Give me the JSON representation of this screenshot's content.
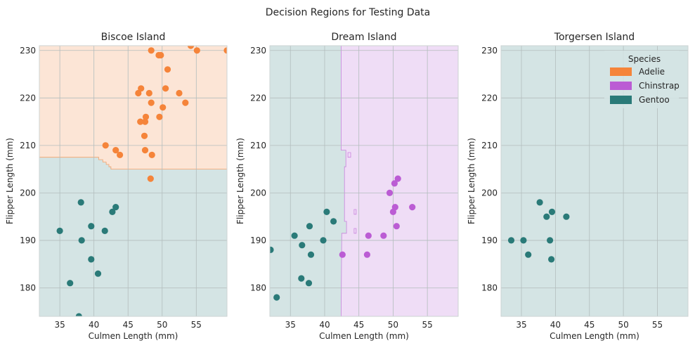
{
  "figure": {
    "title": "Decision Regions for Testing Data"
  },
  "colors": {
    "Adelie": "#f5843a",
    "Chinstrap": "#bb5cd4",
    "Gentoo": "#2a7a78",
    "Adelie_region": "#fce5d6",
    "Chinstrap_region": "#efddf6",
    "Gentoo_region": "#d4e4e4",
    "grid": "#b3bdbd",
    "spine": "#cdd3d3"
  },
  "legend": {
    "title": "Species",
    "placement": "top-right of Torgersen Island panel",
    "entries": [
      "Adelie",
      "Chinstrap",
      "Gentoo"
    ]
  },
  "chart_data": [
    {
      "type": "scatter",
      "title": "Biscoe Island",
      "xlabel": "Culmen Length (mm)",
      "ylabel": "Flipper Length (mm)",
      "xlim": [
        32,
        59.5
      ],
      "ylim": [
        174,
        231
      ],
      "xticks": [
        35,
        40,
        45,
        50,
        55
      ],
      "yticks": [
        180,
        190,
        200,
        210,
        220,
        230
      ],
      "grid": true,
      "background_region": "Gentoo",
      "regions": [
        {
          "class": "Adelie",
          "boundary": [
            [
              32,
              207.5
            ],
            [
              40.7,
              207.5
            ],
            [
              40.7,
              207
            ],
            [
              41.3,
              207
            ],
            [
              41.3,
              206.5
            ],
            [
              41.8,
              206.5
            ],
            [
              41.8,
              206
            ],
            [
              42.2,
              206
            ],
            [
              42.2,
              205.5
            ],
            [
              42.5,
              205.5
            ],
            [
              42.5,
              205
            ],
            [
              59.5,
              205
            ],
            [
              59.5,
              231
            ],
            [
              32,
              231
            ]
          ]
        }
      ],
      "series": [
        {
          "name": "Adelie",
          "points": [
            [
              48.4,
              230
            ],
            [
              49.5,
              229
            ],
            [
              49.8,
              229
            ],
            [
              54.2,
              231
            ],
            [
              55.1,
              230
            ],
            [
              59.5,
              230
            ],
            [
              50.8,
              226
            ],
            [
              46.5,
              221
            ],
            [
              46.9,
              222
            ],
            [
              48.1,
              221
            ],
            [
              50.5,
              222
            ],
            [
              52.5,
              221
            ],
            [
              48.4,
              219
            ],
            [
              53.4,
              219
            ],
            [
              50.1,
              218
            ],
            [
              47.6,
              216
            ],
            [
              49.6,
              216
            ],
            [
              46.8,
              215
            ],
            [
              47.5,
              215
            ],
            [
              47.4,
              212
            ],
            [
              41.7,
              210
            ],
            [
              43.2,
              209
            ],
            [
              47.5,
              209
            ],
            [
              43.8,
              208
            ],
            [
              48.5,
              208
            ],
            [
              48.3,
              203
            ]
          ]
        },
        {
          "name": "Gentoo",
          "points": [
            [
              38.1,
              198
            ],
            [
              43.2,
              197
            ],
            [
              42.7,
              196
            ],
            [
              35.0,
              192
            ],
            [
              41.6,
              192
            ],
            [
              39.6,
              193
            ],
            [
              38.2,
              190
            ],
            [
              39.6,
              186
            ],
            [
              40.6,
              183
            ],
            [
              36.5,
              181
            ],
            [
              37.8,
              174
            ]
          ]
        }
      ]
    },
    {
      "type": "scatter",
      "title": "Dream Island",
      "xlabel": "Culmen Length (mm)",
      "ylabel": "Flipper Length (mm)",
      "xlim": [
        32,
        59.5
      ],
      "ylim": [
        174,
        231
      ],
      "xticks": [
        35,
        40,
        45,
        50,
        55
      ],
      "yticks": [
        180,
        190,
        200,
        210,
        220,
        230
      ],
      "grid": true,
      "background_region": "Gentoo",
      "regions": [
        {
          "class": "Chinstrap",
          "boundary": [
            [
              42.4,
              174
            ],
            [
              59.5,
              174
            ],
            [
              59.5,
              231
            ],
            [
              42.4,
              231
            ],
            [
              42.4,
              209
            ],
            [
              43.1,
              209
            ],
            [
              43.1,
              205.5
            ],
            [
              42.9,
              205.5
            ],
            [
              42.9,
              194
            ],
            [
              43.2,
              194
            ],
            [
              43.2,
              191.5
            ],
            [
              42.5,
              191.5
            ]
          ]
        },
        {
          "class": "Chinstrap",
          "boundary": [
            [
              43.4,
              208.5
            ],
            [
              43.8,
              208.5
            ],
            [
              43.8,
              207.5
            ],
            [
              43.4,
              207.5
            ]
          ]
        },
        {
          "class": "Chinstrap",
          "boundary": [
            [
              44.3,
              196.5
            ],
            [
              44.6,
              196.5
            ],
            [
              44.6,
              195.5
            ],
            [
              44.3,
              195.5
            ]
          ]
        },
        {
          "class": "Chinstrap",
          "boundary": [
            [
              44.3,
              192.5
            ],
            [
              44.6,
              192.5
            ],
            [
              44.6,
              191.5
            ],
            [
              44.3,
              191.5
            ]
          ]
        }
      ],
      "series": [
        {
          "name": "Chinstrap",
          "points": [
            [
              50.7,
              203
            ],
            [
              50.2,
              202
            ],
            [
              49.5,
              200
            ],
            [
              50.3,
              197
            ],
            [
              52.8,
              197
            ],
            [
              50.0,
              196
            ],
            [
              50.5,
              193
            ],
            [
              46.4,
              191
            ],
            [
              48.6,
              191
            ],
            [
              42.6,
              187
            ],
            [
              46.2,
              187
            ]
          ]
        },
        {
          "name": "Gentoo",
          "points": [
            [
              40.3,
              196
            ],
            [
              41.3,
              194
            ],
            [
              37.8,
              193
            ],
            [
              35.6,
              191
            ],
            [
              39.8,
              190
            ],
            [
              36.7,
              189
            ],
            [
              32.1,
              188
            ],
            [
              38.0,
              187
            ],
            [
              36.6,
              182
            ],
            [
              37.7,
              181
            ],
            [
              33.0,
              178
            ]
          ]
        }
      ]
    },
    {
      "type": "scatter",
      "title": "Torgersen Island",
      "xlabel": "Culmen Length (mm)",
      "ylabel": "Flipper Length (mm)",
      "xlim": [
        32,
        59.5
      ],
      "ylim": [
        174,
        231
      ],
      "xticks": [
        35,
        40,
        45,
        50,
        55
      ],
      "yticks": [
        180,
        190,
        200,
        210,
        220,
        230
      ],
      "grid": true,
      "background_region": "Gentoo",
      "regions": [],
      "series": [
        {
          "name": "Gentoo",
          "points": [
            [
              37.7,
              198
            ],
            [
              39.5,
              196
            ],
            [
              38.7,
              195
            ],
            [
              41.6,
              195
            ],
            [
              33.5,
              190
            ],
            [
              35.3,
              190
            ],
            [
              39.2,
              190
            ],
            [
              36.0,
              187
            ],
            [
              39.4,
              186
            ]
          ]
        }
      ]
    }
  ]
}
